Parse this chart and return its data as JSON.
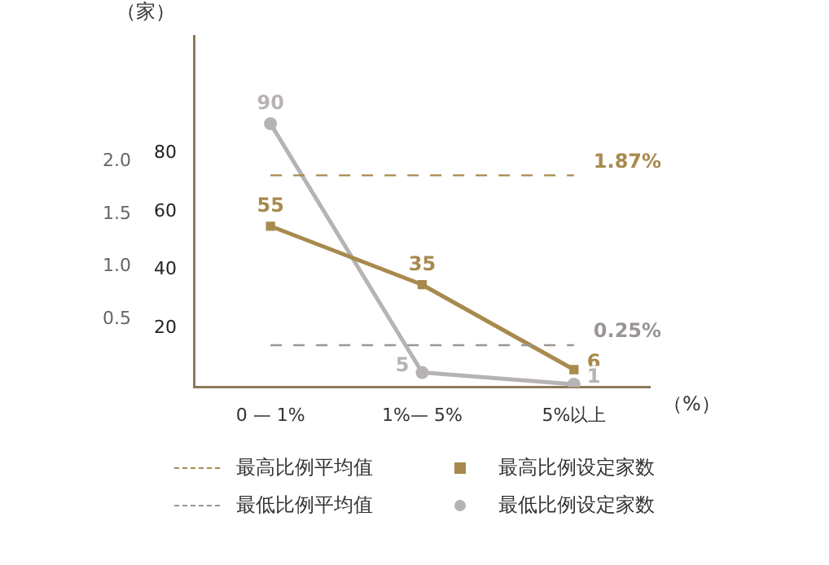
{
  "chart_data": {
    "type": "line",
    "categories": [
      "0 — 1%",
      "1%— 5%",
      "5%以上"
    ],
    "xlabel": "（%）",
    "ylabel": "（家）",
    "ylim": [
      0,
      120
    ],
    "yticks": [
      20,
      40,
      60,
      80
    ],
    "y2lim": [
      -0.15,
      3.2
    ],
    "y2ticks": [
      0.5,
      {
        "value": 1,
        "label": "1.0"
      },
      1.5,
      {
        "value": 2,
        "label": "2.0"
      }
    ],
    "grid": false,
    "legend": "bottom",
    "data_labels": true,
    "series": [
      {
        "name": "最高比例平均值",
        "axis": "y2",
        "color": "#a88a4e",
        "line_style": "dashed",
        "marker": "none",
        "values": [
          1.87,
          1.87,
          1.87
        ],
        "value_labels": [
          null,
          null,
          "1.87%"
        ]
      },
      {
        "name": "最低比例平均值",
        "axis": "y2",
        "color": "#9a9594",
        "line_style": "dashed",
        "marker": "none",
        "values": [
          0.25,
          0.25,
          0.25
        ],
        "value_labels": [
          null,
          null,
          "0.25%"
        ]
      },
      {
        "name": "最高比例设定家数",
        "color": "#a88a4e",
        "line_style": "solid",
        "marker": "square",
        "values": [
          55,
          35,
          6
        ]
      },
      {
        "name": "最低比例设定家数",
        "color": "#b8b3b3",
        "line_style": "solid",
        "marker": "circle",
        "values": [
          90,
          5,
          1
        ]
      }
    ]
  }
}
